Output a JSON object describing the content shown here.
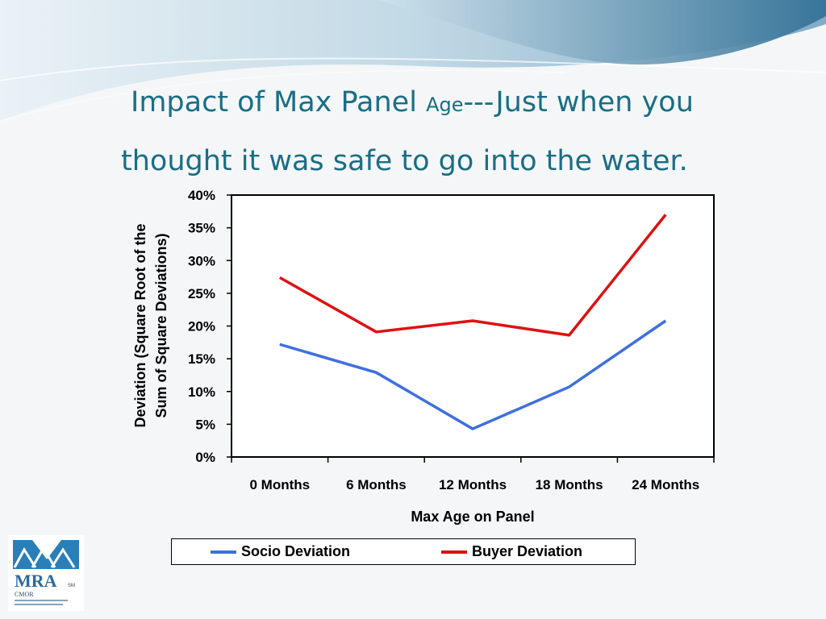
{
  "slide": {
    "title_line1_a": "Impact of Max Panel ",
    "title_line1_b": "Age",
    "title_line1_c": "---Just when you",
    "title_line2": "thought it was safe to go into the water."
  },
  "logo": {
    "name": "MRA",
    "sm_mark": "SM",
    "cmor_line": "CMOR",
    "icon": "mra-logo-icon"
  },
  "colors": {
    "socio": "#3f6fe0",
    "buyer": "#dd1212",
    "title": "#1a6e84"
  },
  "chart_data": {
    "type": "line",
    "categories": [
      "0 Months",
      "6 Months",
      "12 Months",
      "18 Months",
      "24 Months"
    ],
    "series": [
      {
        "name": "Socio Deviation",
        "values": [
          0.172,
          0.129,
          0.043,
          0.107,
          0.208
        ]
      },
      {
        "name": "Buyer Deviation",
        "values": [
          0.274,
          0.191,
          0.208,
          0.186,
          0.37
        ]
      }
    ],
    "ylim": [
      0,
      0.4
    ],
    "yticks": [
      "0%",
      "5%",
      "10%",
      "15%",
      "20%",
      "25%",
      "30%",
      "35%",
      "40%"
    ],
    "xlabel": "Max Age on Panel",
    "ylabel_line1": "Deviation (Square Root of the",
    "ylabel_line2": "Sum of Square Deviations)",
    "legend_position": "bottom",
    "grid": false
  }
}
